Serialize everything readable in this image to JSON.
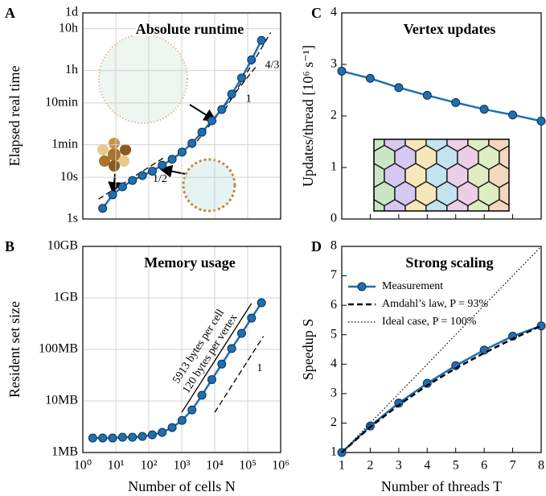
{
  "chart_data": [
    {
      "type": "line",
      "panel_label": "A",
      "title": "Absolute runtime",
      "ylabel": "Elapsed real time",
      "xscale": "log",
      "yscale": "log",
      "xlim": [
        1,
        1000000
      ],
      "ylim": [
        1,
        86400
      ],
      "xticks": [
        1,
        10,
        100,
        1000,
        10000,
        100000,
        1000000
      ],
      "xtick_labels": false,
      "yticks": [
        {
          "value": 1,
          "label": "1s"
        },
        {
          "value": 10,
          "label": "10s"
        },
        {
          "value": 60,
          "label": "1min"
        },
        {
          "value": 600,
          "label": "10min"
        },
        {
          "value": 3600,
          "label": "1h"
        },
        {
          "value": 36000,
          "label": "10h"
        },
        {
          "value": 86400,
          "label": "1d"
        }
      ],
      "grid": true,
      "x": [
        4,
        8,
        16,
        32,
        64,
        128,
        256,
        512,
        1024,
        2048,
        4096,
        8192,
        16384,
        32768,
        65536,
        131072,
        262144
      ],
      "series": [
        {
          "color": "#1f6fb2",
          "values": [
            1.8,
            3.8,
            5.9,
            8.4,
            11,
            14,
            19.5,
            27,
            40,
            65,
            120,
            225,
            420,
            980,
            2400,
            6500,
            19000
          ]
        }
      ],
      "reference_lines": [
        {
          "label": "1/2",
          "x": [
            3,
            300
          ],
          "values": [
            3,
            30
          ]
        },
        {
          "label": "1",
          "x": [
            2000,
            200000
          ],
          "values": [
            50,
            5000
          ]
        },
        {
          "label": "4/3",
          "x": [
            20000,
            500000
          ],
          "values": [
            400,
            29200
          ]
        }
      ]
    },
    {
      "type": "line",
      "panel_label": "B",
      "title": "Memory usage",
      "ylabel": "Resident set size",
      "xlabel": "Number of cells N",
      "xscale": "log",
      "yscale": "log",
      "xlim": [
        1,
        1000000
      ],
      "ylim": [
        1,
        10000
      ],
      "xticks": [
        {
          "value": 1,
          "label": "10⁰"
        },
        {
          "value": 10,
          "label": "10¹"
        },
        {
          "value": 100,
          "label": "10²"
        },
        {
          "value": 1000,
          "label": "10³"
        },
        {
          "value": 10000,
          "label": "10⁴"
        },
        {
          "value": 100000,
          "label": "10⁵"
        },
        {
          "value": 1000000,
          "label": "10⁶"
        }
      ],
      "yticks": [
        {
          "value": 1,
          "label": "1MB"
        },
        {
          "value": 10,
          "label": "10MB"
        },
        {
          "value": 100,
          "label": "100MB"
        },
        {
          "value": 1000,
          "label": "1GB"
        },
        {
          "value": 10000,
          "label": "10GB"
        }
      ],
      "grid": true,
      "x": [
        2,
        4,
        8,
        16,
        32,
        64,
        128,
        256,
        512,
        1024,
        2048,
        4096,
        8192,
        16384,
        32768,
        65536,
        131072,
        262144
      ],
      "series": [
        {
          "color": "#1f6fb2",
          "values": [
            1.91,
            1.91,
            1.91,
            1.98,
            1.98,
            2.05,
            2.21,
            2.46,
            3.05,
            4.2,
            6.7,
            12.9,
            26,
            52,
            104,
            205,
            406,
            806
          ]
        }
      ],
      "reference_lines": [
        {
          "style": "solid",
          "x": [
            1000,
            130000
          ],
          "values": [
            6,
            780
          ]
        },
        {
          "label": "1",
          "x": [
            10000,
            300000
          ],
          "values": [
            6,
            180
          ]
        }
      ],
      "annotations": [
        "5913 bytes per cell",
        "120 bytes per vertex"
      ]
    },
    {
      "type": "line",
      "panel_label": "C",
      "title": "Vertex updates",
      "ylabel": "Updates/thread [10⁶ s⁻¹]",
      "xlim": [
        1,
        8
      ],
      "ylim": [
        0,
        4
      ],
      "xticks": [
        1,
        2,
        3,
        4,
        5,
        6,
        7,
        8
      ],
      "xtick_labels": false,
      "yticks": [
        0,
        1,
        2,
        3,
        4
      ],
      "grid": false,
      "x": [
        1,
        2,
        3,
        4,
        5,
        6,
        7,
        8
      ],
      "series": [
        {
          "color": "#1f6fb2",
          "values": [
            2.87,
            2.73,
            2.55,
            2.4,
            2.26,
            2.13,
            2.02,
            1.9
          ]
        }
      ]
    },
    {
      "type": "line",
      "panel_label": "D",
      "title": "Strong scaling",
      "ylabel": "Speedup S",
      "xlabel": "Number of threads T",
      "xlim": [
        1,
        8
      ],
      "ylim": [
        1,
        8
      ],
      "xticks": [
        1,
        2,
        3,
        4,
        5,
        6,
        7,
        8
      ],
      "yticks": [
        1,
        2,
        3,
        4,
        5,
        6,
        7,
        8
      ],
      "grid": false,
      "legend": "upper left",
      "x": [
        1,
        2,
        3,
        4,
        5,
        6,
        7,
        8
      ],
      "series": [
        {
          "name": "Measurement",
          "color": "#1f6fb2",
          "linestyle": "solid",
          "marker": true,
          "values": [
            1,
            1.9,
            2.68,
            3.35,
            3.95,
            4.48,
            4.95,
            5.3
          ]
        },
        {
          "name": "Amdahl’s law, P = 93%",
          "color": "#000000",
          "linestyle": "dashed",
          "marker": false,
          "values": [
            1,
            1.869,
            2.61,
            3.28,
            3.86,
            4.38,
            4.86,
            5.3
          ]
        },
        {
          "name": "Ideal case, P = 100%",
          "color": "#000000",
          "linestyle": "dotted",
          "marker": false,
          "values": [
            1,
            2,
            3,
            4,
            5,
            6,
            7,
            8
          ]
        }
      ]
    }
  ]
}
